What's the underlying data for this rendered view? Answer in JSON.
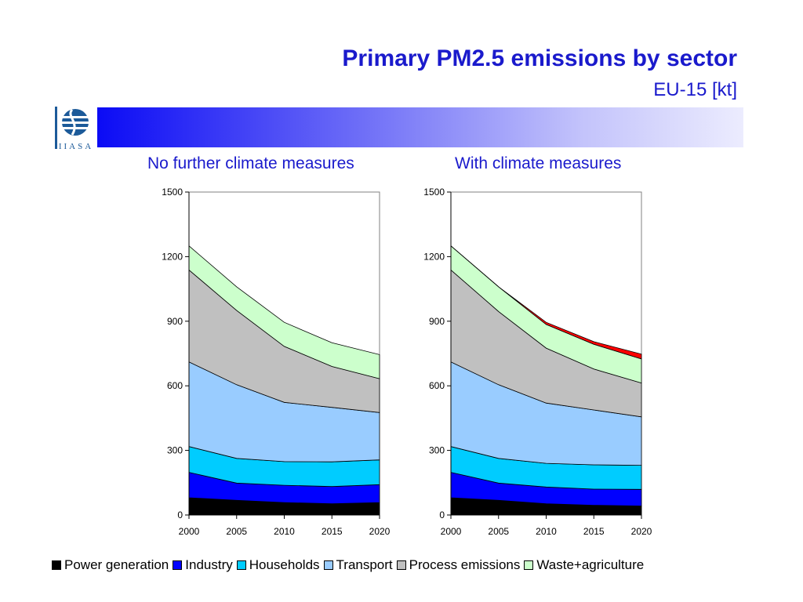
{
  "header": {
    "title": "Primary PM2.5 emissions by sector",
    "subtitle": "EU-15 [kt]",
    "logo_text": "IIASA"
  },
  "chart_data": [
    {
      "type": "area",
      "stacked": true,
      "title": "No further climate measures",
      "x": [
        2000,
        2005,
        2010,
        2015,
        2020
      ],
      "ylim": [
        0,
        1500
      ],
      "yticks": [
        0,
        300,
        600,
        900,
        1200,
        1500
      ],
      "grid": false,
      "series": [
        {
          "name": "Power generation",
          "color": "#000000",
          "values": [
            80,
            68,
            58,
            52,
            58
          ]
        },
        {
          "name": "Industry",
          "color": "#0000ff",
          "values": [
            118,
            80,
            80,
            80,
            83
          ]
        },
        {
          "name": "Households",
          "color": "#00ccff",
          "values": [
            120,
            115,
            110,
            115,
            115
          ]
        },
        {
          "name": "Transport",
          "color": "#99ccff",
          "values": [
            393,
            342,
            275,
            253,
            220
          ]
        },
        {
          "name": "Process emissions",
          "color": "#c0c0c0",
          "values": [
            427,
            345,
            260,
            190,
            157
          ]
        },
        {
          "name": "Waste+agriculture",
          "color": "#ccffcc",
          "values": [
            112,
            110,
            112,
            110,
            112
          ]
        }
      ]
    },
    {
      "type": "area",
      "stacked": true,
      "title": "With climate measures",
      "x": [
        2000,
        2005,
        2010,
        2015,
        2020
      ],
      "ylim": [
        0,
        1500
      ],
      "yticks": [
        0,
        300,
        600,
        900,
        1200,
        1500
      ],
      "grid": false,
      "series": [
        {
          "name": "Power generation",
          "color": "#000000",
          "values": [
            80,
            68,
            52,
            45,
            42
          ]
        },
        {
          "name": "Industry",
          "color": "#0000ff",
          "values": [
            118,
            80,
            78,
            75,
            77
          ]
        },
        {
          "name": "Households",
          "color": "#00ccff",
          "values": [
            120,
            115,
            110,
            113,
            112
          ]
        },
        {
          "name": "Transport",
          "color": "#99ccff",
          "values": [
            393,
            342,
            280,
            255,
            225
          ]
        },
        {
          "name": "Process emissions",
          "color": "#c0c0c0",
          "values": [
            427,
            340,
            255,
            190,
            157
          ]
        },
        {
          "name": "Waste+agriculture",
          "color": "#ccffcc",
          "values": [
            112,
            115,
            110,
            115,
            112
          ]
        },
        {
          "name": "",
          "color": "#ff0000",
          "values": [
            0,
            0,
            10,
            12,
            22
          ]
        }
      ]
    }
  ],
  "legend": [
    {
      "label": "Power generation",
      "color": "#000000"
    },
    {
      "label": "Industry",
      "color": "#0000ff"
    },
    {
      "label": "Households",
      "color": "#00ccff"
    },
    {
      "label": "Transport",
      "color": "#99ccff"
    },
    {
      "label": "Process emissions",
      "color": "#c0c0c0"
    },
    {
      "label": "Waste+agriculture",
      "color": "#ccffcc"
    }
  ]
}
